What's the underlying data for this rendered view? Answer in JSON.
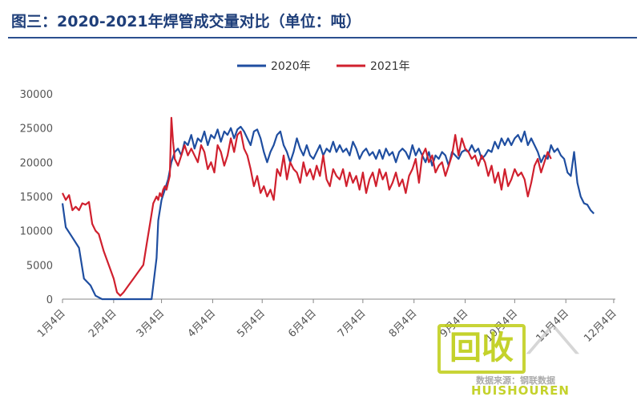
{
  "title": "图三：2020-2021年焊管成交量对比（单位：吨）",
  "watermark": {
    "logo_text": "回收",
    "brand": "HUISHOUREN",
    "source": "数据来源：钢联数据"
  },
  "colors": {
    "s2020": "#1f4ea0",
    "s2021": "#d0202e",
    "title": "#1f3f7a"
  },
  "chart_data": {
    "type": "line",
    "title": "图三：2020-2021年焊管成交量对比（单位：吨）",
    "xlabel": "",
    "ylabel": "",
    "ylim": [
      0,
      30000
    ],
    "yticks": [
      0,
      5000,
      10000,
      15000,
      20000,
      25000,
      30000
    ],
    "x_ticks": [
      "1月4日",
      "2月4日",
      "3月4日",
      "4月4日",
      "5月4日",
      "6月4日",
      "7月4日",
      "8月4日",
      "9月4日",
      "10月4日",
      "11月4日",
      "12月4日"
    ],
    "x_note": "x values are days since 1月4日",
    "legend": "top-center",
    "grid": false,
    "series": [
      {
        "name": "2020年",
        "color": "#1f4ea0",
        "points": [
          [
            0,
            14000
          ],
          [
            2,
            10500
          ],
          [
            6,
            9000
          ],
          [
            10,
            7500
          ],
          [
            13,
            3000
          ],
          [
            17,
            2000
          ],
          [
            20,
            500
          ],
          [
            24,
            0
          ],
          [
            30,
            0
          ],
          [
            40,
            0
          ],
          [
            50,
            0
          ],
          [
            54,
            0
          ],
          [
            57,
            6000
          ],
          [
            58,
            11500
          ],
          [
            60,
            14500
          ],
          [
            62,
            16000
          ],
          [
            64,
            17500
          ],
          [
            66,
            20000
          ],
          [
            68,
            21500
          ],
          [
            70,
            22000
          ],
          [
            72,
            21000
          ],
          [
            74,
            23000
          ],
          [
            76,
            22500
          ],
          [
            78,
            24000
          ],
          [
            80,
            22000
          ],
          [
            82,
            23500
          ],
          [
            84,
            23000
          ],
          [
            86,
            24500
          ],
          [
            88,
            22500
          ],
          [
            90,
            24000
          ],
          [
            92,
            23500
          ],
          [
            94,
            24800
          ],
          [
            96,
            23000
          ],
          [
            98,
            24500
          ],
          [
            100,
            24000
          ],
          [
            102,
            25000
          ],
          [
            104,
            23500
          ],
          [
            106,
            24800
          ],
          [
            108,
            25200
          ],
          [
            110,
            24500
          ],
          [
            112,
            23500
          ],
          [
            114,
            22500
          ],
          [
            116,
            24500
          ],
          [
            118,
            24800
          ],
          [
            120,
            23500
          ],
          [
            122,
            21500
          ],
          [
            124,
            20000
          ],
          [
            126,
            21500
          ],
          [
            128,
            22500
          ],
          [
            130,
            24000
          ],
          [
            132,
            24500
          ],
          [
            134,
            22500
          ],
          [
            136,
            21500
          ],
          [
            138,
            20000
          ],
          [
            140,
            21500
          ],
          [
            142,
            23500
          ],
          [
            144,
            22000
          ],
          [
            146,
            21000
          ],
          [
            148,
            22500
          ],
          [
            150,
            21000
          ],
          [
            152,
            20500
          ],
          [
            154,
            21500
          ],
          [
            156,
            22500
          ],
          [
            158,
            21000
          ],
          [
            160,
            22000
          ],
          [
            162,
            21500
          ],
          [
            164,
            23000
          ],
          [
            166,
            21500
          ],
          [
            168,
            22500
          ],
          [
            170,
            21500
          ],
          [
            172,
            22000
          ],
          [
            174,
            21000
          ],
          [
            176,
            23000
          ],
          [
            178,
            22000
          ],
          [
            180,
            20500
          ],
          [
            182,
            21500
          ],
          [
            184,
            22000
          ],
          [
            186,
            21000
          ],
          [
            188,
            21500
          ],
          [
            190,
            20500
          ],
          [
            192,
            21800
          ],
          [
            194,
            20500
          ],
          [
            196,
            22000
          ],
          [
            198,
            21000
          ],
          [
            200,
            21500
          ],
          [
            202,
            20000
          ],
          [
            204,
            21500
          ],
          [
            206,
            22000
          ],
          [
            208,
            21500
          ],
          [
            210,
            20500
          ],
          [
            212,
            22500
          ],
          [
            214,
            21000
          ],
          [
            216,
            22000
          ],
          [
            218,
            21000
          ],
          [
            220,
            20000
          ],
          [
            222,
            21500
          ],
          [
            224,
            19500
          ],
          [
            226,
            21000
          ],
          [
            228,
            20500
          ],
          [
            230,
            21500
          ],
          [
            232,
            21000
          ],
          [
            234,
            19500
          ],
          [
            236,
            21500
          ],
          [
            238,
            21000
          ],
          [
            240,
            20500
          ],
          [
            242,
            21500
          ],
          [
            244,
            21800
          ],
          [
            246,
            21500
          ],
          [
            248,
            22500
          ],
          [
            250,
            21500
          ],
          [
            252,
            22000
          ],
          [
            254,
            20500
          ],
          [
            256,
            21000
          ],
          [
            258,
            21800
          ],
          [
            260,
            21500
          ],
          [
            262,
            23000
          ],
          [
            264,
            22000
          ],
          [
            266,
            23500
          ],
          [
            268,
            22500
          ],
          [
            270,
            23500
          ],
          [
            272,
            22500
          ],
          [
            274,
            23500
          ],
          [
            276,
            24000
          ],
          [
            278,
            23000
          ],
          [
            280,
            24500
          ],
          [
            282,
            22500
          ],
          [
            284,
            23500
          ],
          [
            286,
            22500
          ],
          [
            288,
            21500
          ],
          [
            290,
            20000
          ],
          [
            292,
            21000
          ],
          [
            294,
            20500
          ],
          [
            296,
            22500
          ],
          [
            298,
            21500
          ],
          [
            300,
            22000
          ],
          [
            302,
            21000
          ],
          [
            304,
            20500
          ],
          [
            306,
            18500
          ],
          [
            308,
            18000
          ],
          [
            310,
            21500
          ],
          [
            312,
            17000
          ],
          [
            314,
            15000
          ],
          [
            316,
            14000
          ],
          [
            318,
            13800
          ],
          [
            320,
            13000
          ],
          [
            322,
            12500
          ]
        ]
      },
      {
        "name": "2021年",
        "color": "#d0202e",
        "points": [
          [
            0,
            15500
          ],
          [
            2,
            14500
          ],
          [
            4,
            15200
          ],
          [
            6,
            13000
          ],
          [
            8,
            13500
          ],
          [
            10,
            13000
          ],
          [
            12,
            14000
          ],
          [
            14,
            13800
          ],
          [
            16,
            14200
          ],
          [
            18,
            11000
          ],
          [
            20,
            10000
          ],
          [
            22,
            9500
          ],
          [
            25,
            7000
          ],
          [
            28,
            5000
          ],
          [
            31,
            3000
          ],
          [
            33,
            1000
          ],
          [
            35,
            500
          ],
          [
            37,
            1000
          ],
          [
            40,
            2000
          ],
          [
            43,
            3000
          ],
          [
            46,
            4000
          ],
          [
            49,
            5000
          ],
          [
            51,
            8000
          ],
          [
            53,
            11000
          ],
          [
            55,
            14000
          ],
          [
            57,
            15000
          ],
          [
            58,
            14500
          ],
          [
            59,
            15500
          ],
          [
            60,
            15000
          ],
          [
            61,
            16000
          ],
          [
            62,
            16500
          ],
          [
            63,
            16000
          ],
          [
            64,
            17000
          ],
          [
            65,
            18000
          ],
          [
            66,
            26500
          ],
          [
            67,
            23000
          ],
          [
            68,
            20500
          ],
          [
            70,
            19500
          ],
          [
            72,
            21000
          ],
          [
            74,
            22500
          ],
          [
            76,
            21000
          ],
          [
            78,
            22000
          ],
          [
            80,
            21000
          ],
          [
            82,
            20000
          ],
          [
            84,
            22500
          ],
          [
            86,
            21500
          ],
          [
            88,
            19000
          ],
          [
            90,
            20000
          ],
          [
            92,
            18500
          ],
          [
            94,
            22500
          ],
          [
            96,
            21500
          ],
          [
            98,
            19500
          ],
          [
            100,
            21000
          ],
          [
            102,
            23500
          ],
          [
            104,
            21500
          ],
          [
            106,
            24000
          ],
          [
            108,
            24500
          ],
          [
            110,
            22000
          ],
          [
            112,
            21000
          ],
          [
            114,
            19000
          ],
          [
            116,
            16500
          ],
          [
            118,
            18000
          ],
          [
            120,
            15500
          ],
          [
            122,
            16500
          ],
          [
            124,
            15000
          ],
          [
            126,
            16000
          ],
          [
            128,
            14500
          ],
          [
            130,
            19000
          ],
          [
            132,
            18000
          ],
          [
            134,
            21000
          ],
          [
            136,
            17500
          ],
          [
            138,
            20000
          ],
          [
            140,
            19000
          ],
          [
            142,
            18500
          ],
          [
            144,
            17000
          ],
          [
            146,
            20000
          ],
          [
            148,
            18000
          ],
          [
            150,
            19000
          ],
          [
            152,
            17500
          ],
          [
            154,
            19500
          ],
          [
            156,
            18000
          ],
          [
            158,
            21000
          ],
          [
            160,
            17500
          ],
          [
            162,
            16500
          ],
          [
            164,
            19000
          ],
          [
            166,
            18000
          ],
          [
            168,
            17500
          ],
          [
            170,
            19000
          ],
          [
            172,
            16500
          ],
          [
            174,
            18500
          ],
          [
            176,
            17000
          ],
          [
            178,
            18000
          ],
          [
            180,
            16000
          ],
          [
            182,
            18500
          ],
          [
            184,
            15500
          ],
          [
            186,
            17500
          ],
          [
            188,
            18500
          ],
          [
            190,
            16500
          ],
          [
            192,
            19000
          ],
          [
            194,
            17500
          ],
          [
            196,
            18500
          ],
          [
            198,
            16000
          ],
          [
            200,
            17000
          ],
          [
            202,
            18500
          ],
          [
            204,
            16500
          ],
          [
            206,
            17500
          ],
          [
            208,
            15500
          ],
          [
            210,
            18000
          ],
          [
            212,
            19000
          ],
          [
            214,
            20500
          ],
          [
            216,
            17000
          ],
          [
            218,
            21000
          ],
          [
            220,
            22000
          ],
          [
            222,
            20000
          ],
          [
            224,
            21000
          ],
          [
            226,
            18500
          ],
          [
            228,
            19500
          ],
          [
            230,
            20000
          ],
          [
            232,
            18000
          ],
          [
            234,
            19500
          ],
          [
            236,
            21000
          ],
          [
            238,
            24000
          ],
          [
            240,
            21000
          ],
          [
            242,
            23500
          ],
          [
            244,
            22000
          ],
          [
            246,
            21500
          ],
          [
            248,
            20500
          ],
          [
            250,
            21000
          ],
          [
            252,
            19500
          ],
          [
            254,
            21000
          ],
          [
            256,
            20000
          ],
          [
            258,
            18000
          ],
          [
            260,
            19500
          ],
          [
            262,
            17000
          ],
          [
            264,
            18500
          ],
          [
            266,
            16000
          ],
          [
            268,
            19000
          ],
          [
            270,
            16500
          ],
          [
            272,
            17500
          ],
          [
            274,
            19000
          ],
          [
            276,
            18000
          ],
          [
            278,
            18500
          ],
          [
            280,
            17500
          ],
          [
            282,
            15000
          ],
          [
            284,
            17000
          ],
          [
            286,
            19500
          ],
          [
            288,
            20500
          ],
          [
            290,
            18500
          ],
          [
            292,
            20000
          ],
          [
            294,
            21500
          ],
          [
            296,
            20500
          ]
        ]
      }
    ]
  }
}
